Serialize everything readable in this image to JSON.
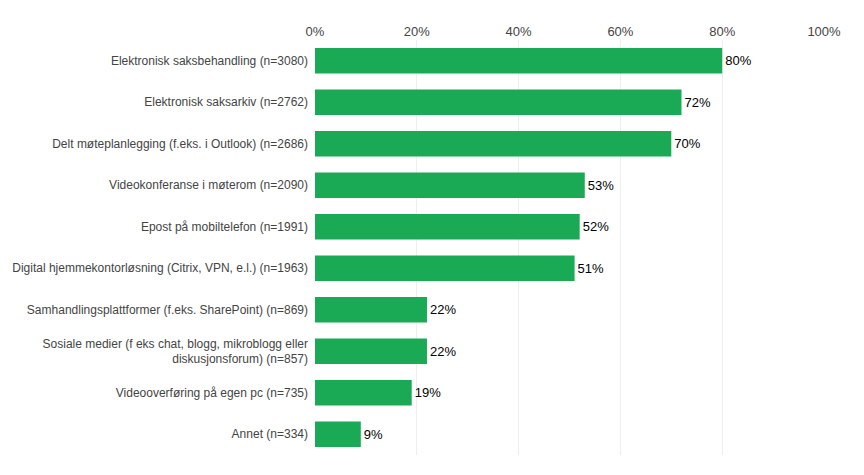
{
  "chart_data": {
    "type": "bar",
    "orientation": "horizontal",
    "categories": [
      "Annet (n=334)",
      "Videooverføring på egen pc (n=735)",
      "Sosiale medier (f eks chat, blogg, mikroblogg eller\ndiskusjonsforum) (n=857)",
      "Samhandlingsplattformer (f.eks. SharePoint) (n=869)",
      "Digital hjemmekontorløsning (Citrix, VPN, e.l.) (n=1963)",
      "Epost på mobiltelefon (n=1991)",
      "Videokonferanse i møterom (n=2090)",
      "Delt møteplanlegging (f.eks. i Outlook) (n=2686)",
      "Elektronisk saksarkiv (n=2762)",
      "Elektronisk saksbehandling (n=3080)"
    ],
    "values": [
      9,
      19,
      22,
      22,
      51,
      52,
      53,
      70,
      72,
      80
    ],
    "value_labels": [
      "9%",
      "19%",
      "22%",
      "22%",
      "51%",
      "52%",
      "53%",
      "70%",
      "72%",
      "80%"
    ],
    "data_labels": true,
    "color": "#1aaa55",
    "xlim": [
      0,
      100
    ],
    "xticks": [
      {
        "value": 0,
        "label": "0%"
      },
      {
        "value": 20,
        "label": "20%"
      },
      {
        "value": 40,
        "label": "40%"
      },
      {
        "value": 60,
        "label": "60%"
      },
      {
        "value": 80,
        "label": "80%"
      },
      {
        "value": 100,
        "label": "100%"
      }
    ],
    "grid": true
  }
}
